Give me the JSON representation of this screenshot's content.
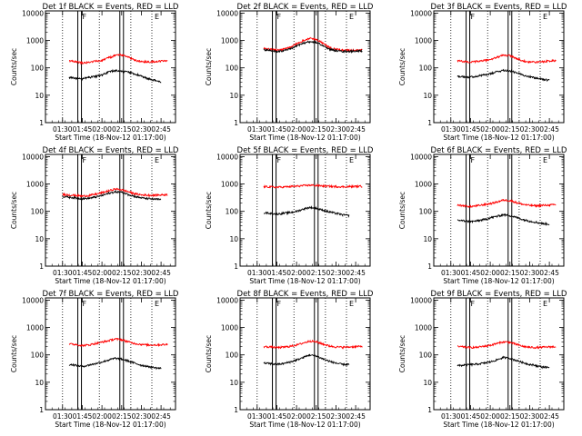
{
  "figure": {
    "panel_axes": {
      "ylabel": "Counts/sec",
      "xlabel": "Start Time (18-Nov-12 01:17:00)",
      "xticks": [
        "01:30",
        "01:45",
        "02:00",
        "02:15",
        "02:30",
        "02:45"
      ],
      "yticks": [
        "1",
        "10",
        "100",
        "1000",
        "10000"
      ],
      "yscale": "log",
      "ylim": [
        1,
        12000
      ],
      "xlim": [
        "01:17",
        "02:56"
      ]
    },
    "series_colors": {
      "events": "#000000",
      "lld": "#ff0000"
    },
    "event_markers": [
      {
        "label": "",
        "style": "dotted",
        "time": "01:30"
      },
      {
        "label": "F",
        "style": "solid-double",
        "time": "01:43"
      },
      {
        "label": "",
        "style": "dotted",
        "time": "01:58"
      },
      {
        "label": "",
        "style": "solid-double",
        "time": "02:15"
      },
      {
        "label": "",
        "style": "dotted",
        "time": "02:22"
      },
      {
        "label": "E",
        "style": "dotted",
        "time": "02:38"
      }
    ]
  },
  "chart_data": [
    {
      "type": "line",
      "title": "Det 1f BLACK = Events, RED = LLD",
      "xlabel": "Start Time (18-Nov-12 01:17:00)",
      "ylabel": "Counts/sec",
      "ylim": [
        1,
        12000
      ],
      "x": [
        "01:30",
        "01:35",
        "01:40",
        "01:45",
        "01:50",
        "01:55",
        "02:00",
        "02:05",
        "02:10",
        "02:15",
        "02:20",
        "02:25",
        "02:30",
        "02:35",
        "02:40",
        "02:45",
        "02:50"
      ],
      "series": [
        {
          "name": "LLD",
          "values": [
            null,
            180,
            170,
            150,
            160,
            175,
            190,
            230,
            280,
            300,
            250,
            190,
            170,
            165,
            170,
            175,
            180
          ]
        },
        {
          "name": "Events",
          "values": [
            null,
            45,
            42,
            40,
            45,
            48,
            55,
            70,
            80,
            75,
            70,
            60,
            50,
            40,
            35,
            30,
            null
          ]
        }
      ]
    },
    {
      "type": "line",
      "title": "Det 2f BLACK = Events, RED = LLD",
      "xlabel": "Start Time (18-Nov-12 01:17:00)",
      "ylabel": "Counts/sec",
      "ylim": [
        1,
        12000
      ],
      "x": [
        "01:30",
        "01:35",
        "01:40",
        "01:45",
        "01:50",
        "01:55",
        "02:00",
        "02:05",
        "02:10",
        "02:15",
        "02:20",
        "02:25",
        "02:30",
        "02:35",
        "02:40",
        "02:45",
        "02:50"
      ],
      "series": [
        {
          "name": "LLD",
          "values": [
            null,
            500,
            480,
            450,
            470,
            550,
            750,
            1000,
            1200,
            1100,
            800,
            550,
            470,
            440,
            430,
            440,
            450
          ]
        },
        {
          "name": "Events",
          "values": [
            null,
            460,
            430,
            400,
            420,
            480,
            620,
            800,
            900,
            850,
            650,
            480,
            420,
            400,
            400,
            410,
            420
          ]
        }
      ]
    },
    {
      "type": "line",
      "title": "Det 3f BLACK = Events, RED = LLD",
      "xlabel": "Start Time (18-Nov-12 01:17:00)",
      "ylabel": "Counts/sec",
      "ylim": [
        1,
        12000
      ],
      "x": [
        "01:30",
        "01:35",
        "01:40",
        "01:45",
        "01:50",
        "01:55",
        "02:00",
        "02:05",
        "02:10",
        "02:15",
        "02:20",
        "02:25",
        "02:30",
        "02:35",
        "02:40",
        "02:45",
        "02:50"
      ],
      "series": [
        {
          "name": "LLD",
          "values": [
            null,
            180,
            170,
            160,
            170,
            185,
            200,
            240,
            290,
            280,
            220,
            180,
            165,
            160,
            170,
            180,
            185
          ]
        },
        {
          "name": "Events",
          "values": [
            null,
            50,
            48,
            46,
            50,
            55,
            60,
            72,
            82,
            78,
            65,
            55,
            48,
            42,
            38,
            35,
            null
          ]
        }
      ]
    },
    {
      "type": "line",
      "title": "Det 4f BLACK = Events, RED = LLD",
      "xlabel": "Start Time (18-Nov-12 01:17:00)",
      "ylabel": "Counts/sec",
      "ylim": [
        1,
        12000
      ],
      "x": [
        "01:30",
        "01:35",
        "01:40",
        "01:45",
        "01:50",
        "01:55",
        "02:00",
        "02:05",
        "02:10",
        "02:15",
        "02:20",
        "02:25",
        "02:30",
        "02:35",
        "02:40",
        "02:45",
        "02:50"
      ],
      "series": [
        {
          "name": "LLD",
          "values": [
            420,
            400,
            380,
            360,
            380,
            420,
            480,
            560,
            650,
            620,
            520,
            440,
            400,
            390,
            390,
            400,
            410
          ]
        },
        {
          "name": "Events",
          "values": [
            350,
            330,
            310,
            290,
            300,
            330,
            380,
            450,
            520,
            500,
            420,
            350,
            310,
            290,
            280,
            270,
            null
          ]
        }
      ]
    },
    {
      "type": "line",
      "title": "Det 5f BLACK = Events, RED = LLD",
      "xlabel": "Start Time (18-Nov-12 01:17:00)",
      "ylabel": "Counts/sec",
      "ylim": [
        1,
        12000
      ],
      "x": [
        "01:30",
        "01:35",
        "01:40",
        "01:45",
        "01:50",
        "01:55",
        "02:00",
        "02:05",
        "02:10",
        "02:15",
        "02:20",
        "02:25",
        "02:30",
        "02:35",
        "02:40",
        "02:45",
        "02:50"
      ],
      "series": [
        {
          "name": "LLD",
          "values": [
            null,
            800,
            780,
            760,
            780,
            800,
            830,
            870,
            900,
            880,
            850,
            820,
            800,
            790,
            800,
            810,
            820
          ]
        },
        {
          "name": "Events",
          "values": [
            null,
            90,
            85,
            80,
            85,
            90,
            100,
            120,
            140,
            130,
            110,
            95,
            85,
            75,
            70,
            null,
            null
          ]
        }
      ]
    },
    {
      "type": "line",
      "title": "Det 6f BLACK = Events, RED = LLD",
      "xlabel": "Start Time (18-Nov-12 01:17:00)",
      "ylabel": "Counts/sec",
      "ylim": [
        1,
        12000
      ],
      "x": [
        "01:30",
        "01:35",
        "01:40",
        "01:45",
        "01:50",
        "01:55",
        "02:00",
        "02:05",
        "02:10",
        "02:15",
        "02:20",
        "02:25",
        "02:30",
        "02:35",
        "02:40",
        "02:45",
        "02:50"
      ],
      "series": [
        {
          "name": "LLD",
          "values": [
            null,
            170,
            160,
            150,
            160,
            175,
            190,
            220,
            260,
            250,
            210,
            180,
            165,
            160,
            165,
            170,
            175
          ]
        },
        {
          "name": "Events",
          "values": [
            null,
            48,
            45,
            42,
            45,
            50,
            58,
            66,
            75,
            70,
            60,
            50,
            44,
            40,
            36,
            34,
            null
          ]
        }
      ]
    },
    {
      "type": "line",
      "title": "Det 7f BLACK = Events, RED = LLD",
      "xlabel": "Start Time (18-Nov-12 01:17:00)",
      "ylabel": "Counts/sec",
      "ylim": [
        1,
        12000
      ],
      "x": [
        "01:30",
        "01:35",
        "01:40",
        "01:45",
        "01:50",
        "01:55",
        "02:00",
        "02:05",
        "02:10",
        "02:15",
        "02:20",
        "02:25",
        "02:30",
        "02:35",
        "02:40",
        "02:45",
        "02:50"
      ],
      "series": [
        {
          "name": "LLD",
          "values": [
            null,
            250,
            240,
            220,
            230,
            260,
            290,
            330,
            380,
            360,
            300,
            260,
            240,
            230,
            230,
            235,
            240
          ]
        },
        {
          "name": "Events",
          "values": [
            null,
            45,
            42,
            38,
            42,
            48,
            55,
            65,
            75,
            70,
            60,
            50,
            42,
            38,
            34,
            32,
            null
          ]
        }
      ]
    },
    {
      "type": "line",
      "title": "Det 8f BLACK = Events, RED = LLD",
      "xlabel": "Start Time (18-Nov-12 01:17:00)",
      "ylabel": "Counts/sec",
      "ylim": [
        1,
        12000
      ],
      "x": [
        "01:30",
        "01:35",
        "01:40",
        "01:45",
        "01:50",
        "01:55",
        "02:00",
        "02:05",
        "02:10",
        "02:15",
        "02:20",
        "02:25",
        "02:30",
        "02:35",
        "02:40",
        "02:45",
        "02:50"
      ],
      "series": [
        {
          "name": "LLD",
          "values": [
            null,
            200,
            195,
            185,
            190,
            205,
            230,
            270,
            320,
            300,
            250,
            210,
            195,
            190,
            195,
            200,
            205
          ]
        },
        {
          "name": "Events",
          "values": [
            null,
            50,
            48,
            45,
            48,
            55,
            65,
            80,
            100,
            90,
            72,
            58,
            50,
            45,
            45,
            null,
            null
          ]
        }
      ]
    },
    {
      "type": "line",
      "title": "Det 9f BLACK = Events, RED = LLD",
      "xlabel": "Start Time (18-Nov-12 01:17:00)",
      "ylabel": "Counts/sec",
      "ylim": [
        1,
        12000
      ],
      "x": [
        "01:30",
        "01:35",
        "01:40",
        "01:45",
        "01:50",
        "01:55",
        "02:00",
        "02:05",
        "02:10",
        "02:15",
        "02:20",
        "02:25",
        "02:30",
        "02:35",
        "02:40",
        "02:45",
        "02:50"
      ],
      "series": [
        {
          "name": "LLD",
          "values": [
            null,
            200,
            195,
            185,
            190,
            205,
            225,
            260,
            300,
            285,
            240,
            205,
            190,
            185,
            190,
            195,
            200
          ]
        },
        {
          "name": "Events",
          "values": [
            null,
            40,
            42,
            44,
            46,
            50,
            55,
            66,
            80,
            75,
            62,
            52,
            45,
            40,
            36,
            35,
            null
          ]
        }
      ]
    }
  ]
}
